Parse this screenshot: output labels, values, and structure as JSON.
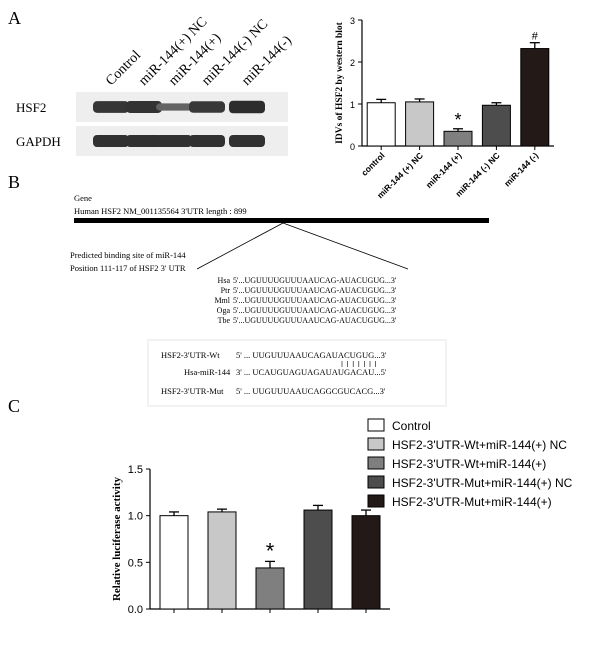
{
  "panels": {
    "a_label": "A",
    "b_label": "B",
    "c_label": "C"
  },
  "blot": {
    "lanes": [
      "Control",
      "miR-144(+) NC",
      "miR-144(+)",
      "miR-144(-) NC",
      "miR-144(-)"
    ],
    "rows": [
      {
        "name": "HSF2",
        "intensity": [
          0.85,
          0.88,
          0.35,
          0.82,
          0.95
        ]
      },
      {
        "name": "GAPDH",
        "intensity": [
          0.9,
          0.9,
          0.9,
          0.9,
          0.9
        ]
      }
    ]
  },
  "chart_data": [
    {
      "type": "bar",
      "categories": [
        "control",
        "miR-144 (+) NC",
        "miR-144 (+)",
        "miR-144 (-) NC",
        "miR-144 (-)"
      ],
      "values": [
        1.03,
        1.05,
        0.35,
        0.97,
        2.32
      ],
      "errors": [
        0.08,
        0.07,
        0.06,
        0.06,
        0.14
      ],
      "colors": [
        "#ffffff",
        "#c8c8c8",
        "#7f7f7f",
        "#4d4d4d",
        "#231a18"
      ],
      "annotations": [
        "",
        "",
        "*",
        "",
        "#"
      ],
      "xlabel": "",
      "ylabel": "IDVs of HSF2 by western blot",
      "ylim": [
        0,
        3
      ],
      "yticks": [
        "0",
        "1",
        "2",
        "3"
      ]
    },
    {
      "type": "bar",
      "categories": [
        "Control",
        "HSF2-3'UTR-Wt+miR-144(+) NC",
        "HSF2-3'UTR-Wt+miR-144(+)",
        "HSF2-3'UTR-Mut+miR-144(+) NC",
        "HSF2-3'UTR-Mut+miR-144(+)"
      ],
      "values": [
        1.0,
        1.04,
        0.44,
        1.06,
        1.0
      ],
      "errors": [
        0.04,
        0.03,
        0.07,
        0.05,
        0.06
      ],
      "colors": [
        "#ffffff",
        "#c8c8c8",
        "#7f7f7f",
        "#4d4d4d",
        "#231a18"
      ],
      "annotations": [
        "",
        "",
        "*",
        "",
        ""
      ],
      "xlabel": "",
      "ylabel": "Relative luciferase activity",
      "ylim": [
        0,
        1.5
      ],
      "yticks": [
        "0.0",
        "0.5",
        "1.0",
        "1.5"
      ],
      "legend": {
        "placement": "top-right",
        "entries": [
          "Control",
          "HSF2-3'UTR-Wt+miR-144(+) NC",
          "HSF2-3'UTR-Wt+miR-144(+)",
          "HSF2-3'UTR-Mut+miR-144(+) NC",
          "HSF2-3'UTR-Mut+miR-144(+)"
        ]
      }
    }
  ],
  "gene": {
    "label": "Gene",
    "description": "Human HSF2 NM_001135564 3'UTR length : 899",
    "binding_title": "Predicted binding site of miR-144",
    "binding_position": "Position 111-117 of HSF2 3' UTR",
    "species": [
      {
        "name": "Hsa",
        "seq": "5'...UGUUUUGUUUAAUCAG-AUACUGUG...3'"
      },
      {
        "name": "Ptr",
        "seq": "5'...UGUUUUGUUUAAUCAG-AUACUGUG...3'"
      },
      {
        "name": "Mml",
        "seq": "5'...UGUUUUGUUUAAUCAG-AUACUGUG...3'"
      },
      {
        "name": "Oga",
        "seq": "5'...UGUUUUGUUUAAUCAG-AUACUGUG...3'"
      },
      {
        "name": "Tbe",
        "seq": "5'...UGUUUUGUUUAAUCAG-AUACUGUG...3'"
      }
    ]
  },
  "pairing": {
    "wt_label": "HSF2-3'UTR-Wt",
    "wt_seq": "5' ... UUGUUUAAUCAGAUACUGUG...3'",
    "mir_label": "Hsa-miR-144",
    "mir_seq": "3' ... UCAUGUAGUAGAUAUGACAU...5'",
    "mut_label": "HSF2-3'UTR-Mut",
    "mut_seq": "5' ... UUGUUUAAUCAGGCGUCACG...3'"
  }
}
